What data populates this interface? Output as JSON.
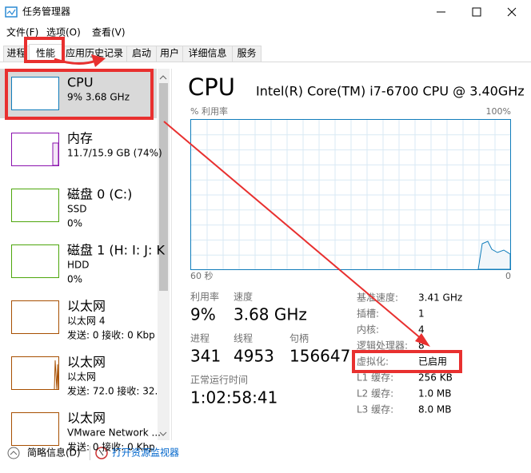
{
  "window": {
    "title": "任务管理器"
  },
  "menu": [
    "文件(F)",
    "选项(O)",
    "查看(V)"
  ],
  "tabs": [
    "进程",
    "性能",
    "应用历史记录",
    "启动",
    "用户",
    "详细信息",
    "服务"
  ],
  "sidebar": [
    {
      "name": "CPU",
      "lines": [
        "9%  3.68 GHz"
      ]
    },
    {
      "name": "内存",
      "lines": [
        "11.7/15.9 GB (74%)"
      ]
    },
    {
      "name": "磁盘 0 (C:)",
      "lines": [
        "SSD",
        "0%"
      ]
    },
    {
      "name": "磁盘 1 (H: I: J: K",
      "lines": [
        "HDD",
        "0%"
      ]
    },
    {
      "name": "以太网",
      "lines": [
        "以太网 4",
        "发送: 0 接收: 0 Kbp"
      ]
    },
    {
      "name": "以太网",
      "lines": [
        "以太网",
        "发送: 72.0 接收: 32."
      ]
    },
    {
      "name": "以太网",
      "lines": [
        "VMware Network ...",
        "发送: 0 接收: 0 Kbp"
      ]
    }
  ],
  "detail": {
    "title": "CPU",
    "model": "Intel(R) Core(TM) i7-6700 CPU @ 3.40GHz",
    "graph_label": "% 利用率",
    "graph_max": "100%",
    "graph_time": "60 秒",
    "graph_min": "0",
    "stats": [
      {
        "label": "利用率",
        "value": "9%"
      },
      {
        "label": "速度",
        "value": "3.68 GHz"
      },
      {
        "label": "进程",
        "value": "341"
      },
      {
        "label": "线程",
        "value": "4953"
      },
      {
        "label": "句柄",
        "value": "156647"
      },
      {
        "label": "正常运行时间",
        "value": "1:02:58:41"
      }
    ],
    "specs": [
      {
        "label": "基准速度:",
        "value": "3.41 GHz"
      },
      {
        "label": "插槽:",
        "value": "1"
      },
      {
        "label": "内核:",
        "value": "4"
      },
      {
        "label": "逻辑处理器:",
        "value": "8"
      },
      {
        "label": "虚拟化:",
        "value": "已启用"
      },
      {
        "label": "L1 缓存:",
        "value": "256 KB"
      },
      {
        "label": "L2 缓存:",
        "value": "1.0 MB"
      },
      {
        "label": "L3 缓存:",
        "value": "8.0 MB"
      }
    ]
  },
  "footer": [
    "简略信息(D)",
    "打开资源监视器"
  ]
}
